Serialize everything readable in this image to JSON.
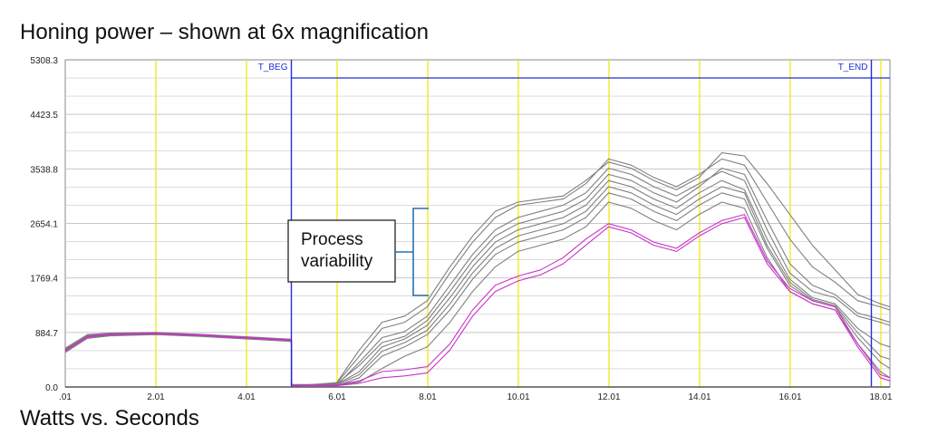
{
  "title": "Honing power – shown at 6x magnification",
  "subtitle": "Watts vs. Seconds",
  "chart_data": {
    "type": "line",
    "xlabel": "Seconds",
    "ylabel": "Watts",
    "xlim": [
      0.01,
      18.21
    ],
    "ylim": [
      0,
      5308.3
    ],
    "x_ticks": [
      ".01",
      "2.01",
      "4.01",
      "6.01",
      "8.01",
      "10.01",
      "12.01",
      "14.01",
      "16.01",
      "18.01"
    ],
    "x_tick_values": [
      0.01,
      2.01,
      4.01,
      6.01,
      8.01,
      10.01,
      12.01,
      14.01,
      16.01,
      18.01
    ],
    "y_ticks": [
      "0.0",
      "884.7",
      "1769.4",
      "2654.1",
      "3538.8",
      "4423.5",
      "5308.3"
    ],
    "y_tick_values": [
      0,
      884.7,
      1769.4,
      2654.1,
      3538.8,
      4423.5,
      5308.3
    ],
    "markers": [
      {
        "label": "T_BEG",
        "x": 5.0
      },
      {
        "label": "T_END",
        "x": 17.8
      }
    ],
    "series": [
      {
        "color": "#7f7f7f",
        "x": [
          0.01,
          0.5,
          1.0,
          2.0,
          3.0,
          4.0,
          5.0,
          5.01,
          6.0,
          6.5,
          7.0,
          7.5,
          8.0,
          8.5,
          9.0,
          9.5,
          10.0,
          10.5,
          11.0,
          11.5,
          12.0,
          12.5,
          13.0,
          13.5,
          14.0,
          14.5,
          15.0,
          15.5,
          16.0,
          16.5,
          17.0,
          17.5,
          18.0,
          18.21
        ],
        "y": [
          600,
          820,
          860,
          870,
          840,
          800,
          760,
          30,
          30,
          400,
          800,
          900,
          1150,
          1650,
          2150,
          2550,
          2750,
          2850,
          2950,
          3150,
          3550,
          3450,
          3250,
          3100,
          3300,
          3500,
          3350,
          2550,
          1850,
          1550,
          1450,
          1150,
          1050,
          1000
        ]
      },
      {
        "color": "#7f7f7f",
        "x": [
          0.01,
          0.5,
          1.0,
          2.0,
          3.0,
          4.0,
          5.0,
          5.01,
          6.0,
          6.5,
          7.0,
          7.5,
          8.0,
          8.5,
          9.0,
          9.5,
          10.0,
          10.5,
          11.0,
          11.5,
          12.0,
          12.5,
          13.0,
          13.5,
          14.0,
          14.5,
          15.0,
          15.5,
          16.0,
          16.5,
          17.0,
          17.5,
          18.0,
          18.21
        ],
        "y": [
          560,
          790,
          830,
          850,
          820,
          780,
          740,
          20,
          20,
          150,
          500,
          650,
          850,
          1250,
          1750,
          2150,
          2350,
          2450,
          2550,
          2750,
          3150,
          3050,
          2850,
          2700,
          2950,
          3150,
          3050,
          2250,
          1650,
          1400,
          1300,
          800,
          400,
          300
        ]
      },
      {
        "color": "#7f7f7f",
        "x": [
          0.01,
          0.5,
          1.0,
          2.0,
          3.0,
          4.0,
          5.0,
          5.01,
          6.0,
          6.5,
          7.0,
          7.5,
          8.0,
          8.5,
          9.0,
          9.5,
          10.0,
          10.5,
          11.0,
          11.5,
          12.0,
          12.5,
          13.0,
          13.5,
          14.0,
          14.5,
          15.0,
          15.5,
          16.0,
          16.5,
          17.0,
          17.5,
          18.0,
          18.21
        ],
        "y": [
          580,
          810,
          850,
          860,
          830,
          790,
          750,
          40,
          40,
          250,
          650,
          780,
          1000,
          1450,
          1950,
          2350,
          2550,
          2650,
          2750,
          2950,
          3350,
          3250,
          3050,
          2900,
          3150,
          3350,
          3200,
          2400,
          1750,
          1450,
          1350,
          950,
          700,
          650
        ]
      },
      {
        "color": "#7f7f7f",
        "x": [
          0.01,
          0.5,
          1.0,
          2.0,
          3.0,
          4.0,
          5.0,
          5.01,
          6.0,
          6.5,
          7.0,
          7.5,
          8.0,
          8.5,
          9.0,
          9.5,
          10.0,
          10.5,
          11.0,
          11.5,
          12.0,
          12.5,
          13.0,
          13.5,
          14.0,
          14.5,
          15.0,
          15.5,
          16.0,
          16.5,
          17.0,
          17.5,
          18.0,
          18.21
        ],
        "y": [
          620,
          840,
          870,
          880,
          850,
          810,
          770,
          10,
          60,
          500,
          950,
          1050,
          1300,
          1850,
          2350,
          2750,
          2950,
          3000,
          3050,
          3300,
          3700,
          3600,
          3400,
          3250,
          3450,
          3700,
          3600,
          3000,
          2400,
          1950,
          1700,
          1400,
          1300,
          1250
        ]
      },
      {
        "color": "#7f7f7f",
        "x": [
          0.01,
          0.5,
          1.0,
          2.0,
          3.0,
          4.0,
          5.0,
          5.01,
          6.0,
          6.5,
          7.0,
          7.5,
          8.0,
          8.5,
          9.0,
          9.5,
          10.0,
          10.5,
          11.0,
          11.5,
          12.0,
          12.5,
          13.0,
          13.5,
          14.0,
          14.5,
          15.0,
          15.5,
          16.0,
          16.5,
          17.0,
          17.5,
          18.0,
          18.21
        ],
        "y": [
          590,
          800,
          840,
          855,
          825,
          785,
          745,
          20,
          30,
          80,
          300,
          500,
          650,
          1050,
          1550,
          1950,
          2200,
          2300,
          2400,
          2600,
          3000,
          2900,
          2700,
          2550,
          2800,
          3000,
          2900,
          2100,
          1550,
          1350,
          1250,
          700,
          250,
          150
        ]
      },
      {
        "color": "#7f7f7f",
        "x": [
          0.01,
          0.5,
          1.0,
          2.0,
          3.0,
          4.0,
          5.0,
          5.01,
          6.0,
          6.5,
          7.0,
          7.5,
          8.0,
          8.5,
          9.0,
          9.5,
          10.0,
          10.5,
          11.0,
          11.5,
          12.0,
          12.5,
          13.0,
          13.5,
          14.0,
          14.5,
          15.0,
          15.5,
          16.0,
          16.5,
          17.0,
          17.5,
          18.0,
          18.21
        ],
        "y": [
          610,
          830,
          860,
          865,
          835,
          795,
          755,
          30,
          50,
          350,
          720,
          820,
          1080,
          1550,
          2050,
          2450,
          2650,
          2750,
          2850,
          3050,
          3450,
          3350,
          3150,
          3000,
          3250,
          3550,
          3450,
          2700,
          2000,
          1650,
          1500,
          1200,
          1100,
          1050
        ]
      },
      {
        "color": "#7f7f7f",
        "x": [
          0.01,
          0.5,
          1.0,
          2.0,
          3.0,
          4.0,
          5.0,
          5.01,
          6.0,
          6.5,
          7.0,
          7.5,
          8.0,
          8.5,
          9.0,
          9.5,
          10.0,
          10.5,
          11.0,
          11.5,
          12.0,
          12.5,
          13.0,
          13.5,
          14.0,
          14.5,
          15.0,
          15.5,
          16.0,
          16.5,
          17.0,
          17.5,
          18.0,
          18.21
        ],
        "y": [
          570,
          800,
          845,
          858,
          828,
          788,
          748,
          25,
          35,
          200,
          580,
          720,
          920,
          1350,
          1850,
          2250,
          2450,
          2550,
          2650,
          2850,
          3250,
          3150,
          2950,
          2800,
          3050,
          3250,
          3150,
          2300,
          1700,
          1420,
          1320,
          880,
          500,
          450
        ]
      },
      {
        "color": "#7f7f7f",
        "x": [
          0.01,
          0.5,
          1.0,
          2.0,
          3.0,
          4.0,
          5.0,
          5.01,
          6.0,
          6.5,
          7.0,
          7.5,
          8.0,
          8.5,
          9.0,
          9.5,
          10.0,
          10.5,
          11.0,
          11.5,
          12.0,
          12.5,
          13.0,
          13.5,
          14.0,
          14.5,
          15.0,
          15.5,
          16.0,
          16.5,
          17.0,
          17.5,
          18.0,
          18.21
        ],
        "y": [
          630,
          850,
          875,
          885,
          855,
          815,
          775,
          15,
          70,
          600,
          1050,
          1150,
          1400,
          1950,
          2450,
          2850,
          3000,
          3050,
          3100,
          3350,
          3650,
          3550,
          3350,
          3200,
          3400,
          3800,
          3750,
          3300,
          2800,
          2300,
          1900,
          1500,
          1350,
          1300
        ]
      },
      {
        "color": "#c832c8",
        "x": [
          0.01,
          0.5,
          1.0,
          2.0,
          3.0,
          4.0,
          5.0,
          5.01,
          6.0,
          6.5,
          7.0,
          7.5,
          8.0,
          8.5,
          9.0,
          9.5,
          10.0,
          10.5,
          11.0,
          11.5,
          12.0,
          12.5,
          13.0,
          13.5,
          14.0,
          14.5,
          15.0,
          15.5,
          16.0,
          16.5,
          17.0,
          17.5,
          18.0,
          18.21
        ],
        "y": [
          600,
          820,
          860,
          875,
          845,
          805,
          765,
          30,
          30,
          100,
          250,
          280,
          330,
          700,
          1250,
          1650,
          1800,
          1900,
          2100,
          2400,
          2650,
          2550,
          2350,
          2250,
          2500,
          2700,
          2800,
          2050,
          1600,
          1400,
          1300,
          700,
          200,
          150
        ]
      },
      {
        "color": "#c832c8",
        "x": [
          0.01,
          0.5,
          1.0,
          2.0,
          3.0,
          4.0,
          5.0,
          5.01,
          6.0,
          6.5,
          7.0,
          7.5,
          8.0,
          8.5,
          9.0,
          9.5,
          10.0,
          10.5,
          11.0,
          11.5,
          12.0,
          12.5,
          13.0,
          13.5,
          14.0,
          14.5,
          15.0,
          15.5,
          16.0,
          16.5,
          17.0,
          17.5,
          18.0,
          18.21
        ],
        "y": [
          590,
          810,
          850,
          865,
          835,
          795,
          755,
          20,
          20,
          60,
          150,
          180,
          230,
          600,
          1150,
          1550,
          1720,
          1820,
          2000,
          2300,
          2600,
          2500,
          2300,
          2200,
          2450,
          2650,
          2750,
          2000,
          1550,
          1350,
          1250,
          650,
          150,
          100
        ]
      }
    ]
  },
  "annotation": {
    "lines": [
      "Process",
      "variability"
    ]
  },
  "colors": {
    "grid_horizontal": "#c8c8c8",
    "grid_vertical": "#f0e600",
    "marker": "#1f2fd6",
    "axis": "#555555",
    "band": "#2a6fb0"
  }
}
